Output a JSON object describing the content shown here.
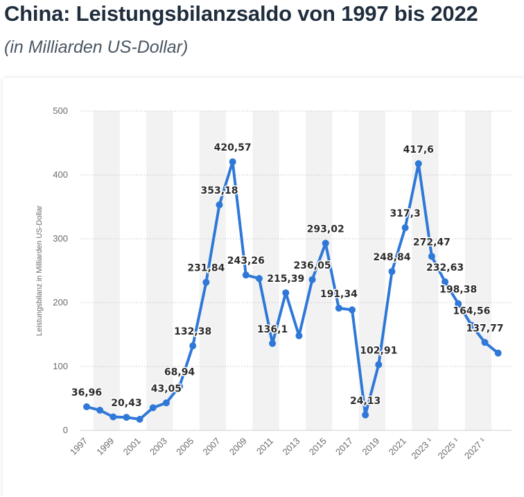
{
  "header": {
    "title": "China: Leistungsbilanzsaldo von 1997 bis 2022",
    "subtitle": "(in Milliarden US-Dollar)"
  },
  "colors": {
    "line": "#2f78d8",
    "band": "#f2f2f2",
    "grid": "#cfcfcf"
  },
  "chart_data": {
    "type": "line",
    "title": "China: Leistungsbilanzsaldo von 1997 bis 2022",
    "subtitle": "(in Milliarden US-Dollar)",
    "ylabel": "Leistungsbilanz in Milliarden US-Dollar",
    "ylim": [
      0,
      500
    ],
    "yticks": [
      "0",
      "100",
      "200",
      "300",
      "400",
      "500"
    ],
    "grid": true,
    "x": [
      1997,
      1998,
      1999,
      2000,
      2001,
      2002,
      2003,
      2004,
      2005,
      2006,
      2007,
      2008,
      2009,
      2010,
      2011,
      2012,
      2013,
      2014,
      2015,
      2016,
      2017,
      2018,
      2019,
      2020,
      2021,
      2022,
      2023,
      2024,
      2025,
      2026,
      2027,
      2028
    ],
    "xtick_labels": [
      "1997",
      "1999",
      "2001",
      "2003",
      "2005",
      "2007",
      "2009",
      "2011",
      "2013",
      "2015",
      "2017",
      "2019",
      "2021",
      "2023 ¹",
      "2025 ¹",
      "2027 ¹"
    ],
    "series": [
      {
        "values": [
          36.96,
          31.5,
          21.1,
          20.43,
          17.4,
          35.4,
          43.05,
          68.94,
          132.38,
          231.84,
          353.18,
          420.57,
          243.26,
          237.8,
          136.1,
          215.39,
          148.2,
          236.05,
          293.02,
          191.34,
          188.7,
          24.13,
          102.91,
          248.84,
          317.3,
          417.6,
          272.47,
          232.63,
          198.38,
          164.56,
          137.77,
          121.0
        ],
        "labels": [
          "36,96",
          "",
          "",
          "20,43",
          "",
          "",
          "43,05",
          "68,94",
          "132,38",
          "231,84",
          "353,18",
          "420,57",
          "243,26",
          "",
          "136,1",
          "215,39",
          "",
          "236,05",
          "293,02",
          "191,34",
          "",
          "24,13",
          "102,91",
          "248,84",
          "317,3",
          "417,6",
          "272,47",
          "232,63",
          "198,38",
          "164,56",
          "137,77",
          ""
        ]
      }
    ]
  }
}
